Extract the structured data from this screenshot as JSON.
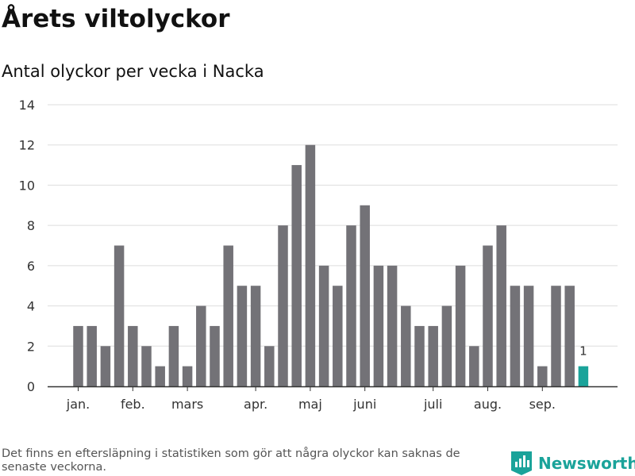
{
  "header": {
    "title": "Årets viltolyckor",
    "subtitle": "Antal olyckor per vecka i Nacka"
  },
  "footer": {
    "note": "Det finns en eftersläpning i statistiken som gör att några olyckor kan saknas de senaste veckorna.",
    "brand": "Newsworthy",
    "brand_color": "#1aa39a",
    "brand_icon": "newsworthy-logo-icon"
  },
  "colors": {
    "bar": "#737277",
    "highlight": "#1aa39a",
    "grid": "#dddddd",
    "axis": "#333333",
    "text": "#333333"
  },
  "chart_data": {
    "type": "bar",
    "title": "Antal olyckor per vecka i Nacka",
    "xlabel": "",
    "ylabel": "",
    "ylim": [
      0,
      14
    ],
    "yticks": [
      0,
      2,
      4,
      6,
      8,
      10,
      12,
      14
    ],
    "grid": true,
    "x_axis": "week",
    "x": [
      2,
      3,
      4,
      5,
      6,
      7,
      8,
      9,
      10,
      11,
      12,
      13,
      14,
      15,
      16,
      17,
      18,
      19,
      20,
      21,
      22,
      23,
      24,
      25,
      26,
      27,
      28,
      29,
      30,
      31,
      32,
      33,
      34,
      35,
      36,
      37,
      38,
      39
    ],
    "values": [
      3,
      3,
      2,
      7,
      3,
      2,
      1,
      3,
      1,
      4,
      3,
      7,
      5,
      5,
      2,
      8,
      11,
      12,
      6,
      5,
      8,
      9,
      6,
      6,
      4,
      3,
      3,
      4,
      6,
      2,
      7,
      8,
      5,
      5,
      1,
      5,
      5,
      1
    ],
    "highlight_last": true,
    "annotations": [
      {
        "week": 39,
        "label": "1"
      }
    ],
    "month_ticks": [
      {
        "label": "jan.",
        "week": 2
      },
      {
        "label": "feb.",
        "week": 6
      },
      {
        "label": "mars",
        "week": 10
      },
      {
        "label": "apr.",
        "week": 15
      },
      {
        "label": "maj",
        "week": 19
      },
      {
        "label": "juni",
        "week": 23
      },
      {
        "label": "juli",
        "week": 28
      },
      {
        "label": "aug.",
        "week": 32
      },
      {
        "label": "sep.",
        "week": 36
      }
    ]
  }
}
